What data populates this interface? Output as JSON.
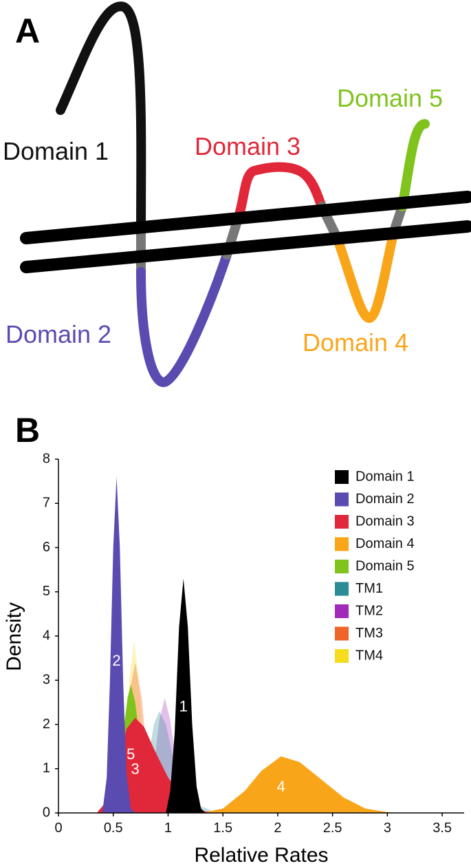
{
  "panel_labels": [
    "A",
    "B"
  ],
  "diagram": {
    "labels": [
      "Domain 1",
      "Domain 2",
      "Domain 3",
      "Domain 4",
      "Domain 5"
    ]
  },
  "chart_data": {
    "type": "area",
    "x_label": "Relative Rates",
    "y_label": "Density",
    "xlim": [
      0,
      3.7
    ],
    "ylim": [
      0,
      8
    ],
    "xticks": [
      0,
      0.5,
      1,
      1.5,
      2,
      2.5,
      3,
      3.5
    ],
    "yticks": [
      0,
      1,
      2,
      3,
      4,
      5,
      6,
      7,
      8
    ],
    "legend": "upper right",
    "series": [
      {
        "name": "Domain 1",
        "color": "#000000",
        "opacity": 1,
        "label": "1",
        "x": [
          0.98,
          1.02,
          1.06,
          1.1,
          1.14,
          1.18,
          1.22,
          1.26,
          1.3,
          1.34
        ],
        "values": [
          0,
          0.5,
          1.8,
          4.2,
          5.3,
          4.2,
          2.0,
          0.6,
          0.1,
          0
        ]
      },
      {
        "name": "Domain 2",
        "color": "#5a4bb0",
        "opacity": 1,
        "label": "2",
        "x": [
          0.4,
          0.44,
          0.47,
          0.5,
          0.53,
          0.56,
          0.59,
          0.62,
          0.66,
          0.7
        ],
        "values": [
          0,
          0.8,
          3.0,
          6.0,
          7.6,
          6.0,
          3.0,
          0.9,
          0.1,
          0
        ]
      },
      {
        "name": "Domain 3",
        "color": "#e0283a",
        "opacity": 1,
        "label": "3",
        "x": [
          0.35,
          0.45,
          0.55,
          0.62,
          0.7,
          0.78,
          0.88,
          1.0,
          1.1,
          1.2,
          1.3,
          1.4
        ],
        "values": [
          0,
          0.3,
          1.2,
          1.9,
          2.15,
          1.95,
          1.4,
          0.8,
          0.45,
          0.2,
          0.06,
          0
        ]
      },
      {
        "name": "Domain 4",
        "color": "#f9a51a",
        "opacity": 1,
        "label": "4",
        "x": [
          1.3,
          1.5,
          1.7,
          1.85,
          2.03,
          2.2,
          2.4,
          2.6,
          2.8,
          3.0,
          3.1
        ],
        "values": [
          0,
          0.1,
          0.5,
          0.95,
          1.28,
          1.15,
          0.75,
          0.35,
          0.1,
          0.02,
          0
        ]
      },
      {
        "name": "Domain 5",
        "color": "#7fc31c",
        "opacity": 1,
        "label": "5",
        "x": [
          0.45,
          0.52,
          0.58,
          0.63,
          0.66,
          0.7,
          0.76,
          0.82,
          0.9
        ],
        "values": [
          0,
          0.5,
          1.6,
          2.6,
          2.9,
          2.5,
          1.3,
          0.4,
          0
        ]
      },
      {
        "name": "TM1",
        "color": "#2a8c96",
        "opacity": 0.3,
        "x": [
          0.7,
          0.8,
          0.87,
          0.92,
          0.98,
          1.05,
          1.15,
          1.3,
          1.45
        ],
        "values": [
          0,
          0.9,
          2.0,
          2.3,
          2.0,
          1.2,
          0.5,
          0.15,
          0
        ]
      },
      {
        "name": "TM2",
        "color": "#a22ab8",
        "opacity": 0.3,
        "x": [
          0.78,
          0.86,
          0.92,
          0.97,
          1.02,
          1.08,
          1.16,
          1.25
        ],
        "values": [
          0,
          0.8,
          2.1,
          2.6,
          2.1,
          1.0,
          0.3,
          0
        ]
      },
      {
        "name": "TM3",
        "color": "#f0642a",
        "opacity": 0.35,
        "x": [
          0.5,
          0.58,
          0.64,
          0.7,
          0.76,
          0.82,
          0.9
        ],
        "values": [
          0,
          0.9,
          2.6,
          3.4,
          2.6,
          0.9,
          0
        ]
      },
      {
        "name": "TM4",
        "color": "#f5dc1e",
        "opacity": 0.3,
        "x": [
          0.52,
          0.6,
          0.65,
          0.69,
          0.73,
          0.78,
          0.86
        ],
        "values": [
          0,
          1.2,
          3.1,
          3.9,
          3.1,
          1.2,
          0
        ]
      }
    ]
  }
}
